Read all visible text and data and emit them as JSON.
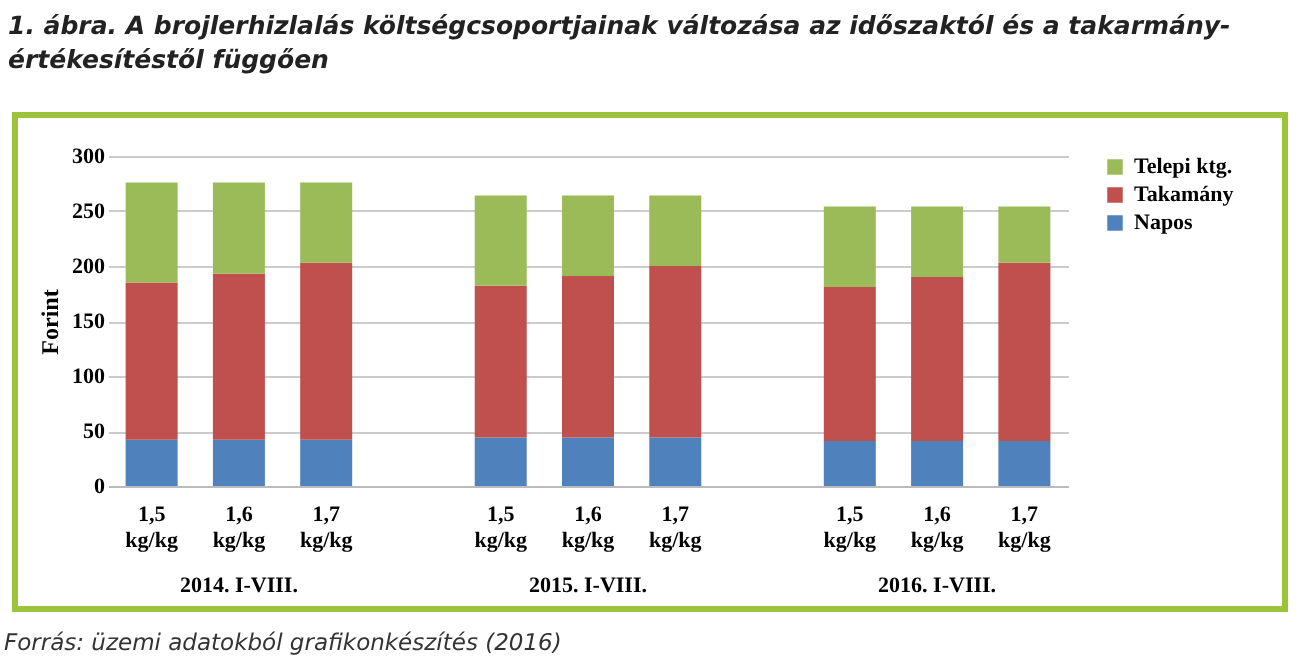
{
  "chart_data": {
    "type": "bar",
    "stacked": true,
    "title": "1. ábra. A brojlerhizlalás költségcsoportjainak változása az időszaktól és a takarmány-értékesítéstől függően",
    "ylabel": "Forint",
    "categories": [
      "1,5 kg/kg",
      "1,6 kg/kg",
      "1,7 kg/kg",
      null,
      "1,5 kg/kg",
      "1,6 kg/kg",
      "1,7 kg/kg",
      null,
      "1,5 kg/kg",
      "1,6 kg/kg",
      "1,7 kg/kg"
    ],
    "series": [
      {
        "name": "Napos",
        "color": "#4f81bd",
        "values": [
          42,
          42,
          42,
          null,
          44,
          44,
          44,
          null,
          41,
          41,
          41
        ]
      },
      {
        "name": "Takamány",
        "color": "#c0504d",
        "values": [
          143,
          151,
          161,
          null,
          138,
          147,
          156,
          null,
          140,
          149,
          162
        ]
      },
      {
        "name": "Telepi ktg.",
        "color": "#9bbb59",
        "values": [
          91,
          83,
          73,
          null,
          82,
          73,
          64,
          null,
          73,
          64,
          51
        ]
      }
    ],
    "ylim": [
      0,
      300
    ],
    "yticks": [
      0,
      50,
      100,
      150,
      200,
      250,
      300
    ],
    "grid": "y",
    "legend": "right",
    "annotations": [
      "2014. I-VIII.",
      "2015. I-VIII.",
      "2016. I-VIII.",
      "Forrás: üzemi adatokból grafikonkészítés (2016)"
    ]
  }
}
